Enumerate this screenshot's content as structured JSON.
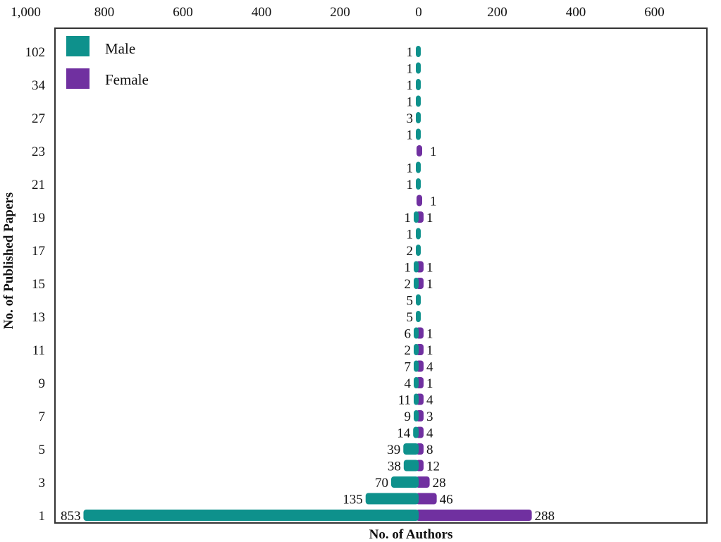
{
  "chart_data": {
    "type": "bar",
    "orientation": "horizontal-diverging",
    "title": "",
    "xlabel": "No. of Authors",
    "ylabel": "No. of Published Papers",
    "x_tick_labels": [
      "1,000",
      "800",
      "600",
      "400",
      "200",
      "0",
      "200",
      "400",
      "600",
      "800"
    ],
    "x_tick_values": [
      -1000,
      -800,
      -600,
      -400,
      -200,
      0,
      200,
      400,
      600,
      800
    ],
    "xlim": [
      -1000,
      800
    ],
    "grid": false,
    "legend": {
      "position": "top-left",
      "entries": [
        "Male",
        "Female"
      ]
    },
    "categories": [
      "102",
      "",
      "34",
      "",
      "27",
      "",
      "23",
      "",
      "21",
      "",
      "19",
      "",
      "17",
      "",
      "15",
      "",
      "13",
      "",
      "11",
      "",
      "9",
      "",
      "7",
      "",
      "5",
      "",
      "3",
      "",
      "1"
    ],
    "series": [
      {
        "name": "Male",
        "color": "#0e918c",
        "direction": "left",
        "values": [
          1,
          1,
          1,
          1,
          3,
          1,
          0,
          1,
          1,
          0,
          1,
          1,
          2,
          1,
          2,
          5,
          5,
          6,
          2,
          7,
          4,
          11,
          9,
          14,
          39,
          38,
          70,
          135,
          853
        ]
      },
      {
        "name": "Female",
        "color": "#7030a0",
        "direction": "right",
        "values": [
          0,
          0,
          0,
          0,
          0,
          0,
          1,
          0,
          0,
          1,
          1,
          0,
          0,
          1,
          1,
          0,
          0,
          1,
          1,
          4,
          1,
          4,
          3,
          4,
          8,
          12,
          28,
          46,
          288
        ]
      }
    ]
  }
}
